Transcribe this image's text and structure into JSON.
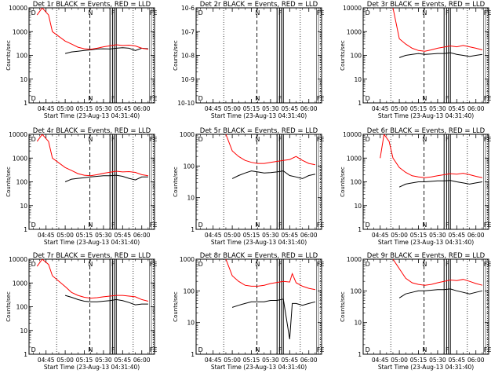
{
  "chart_data": [
    {
      "type": "line",
      "title": "Det 1r BLACK = Events, RED = LLD",
      "xlabel": "Start Time (23-Aug-13 04:31:40)",
      "ylabel": "Counts/sec",
      "x_ticks": [
        "04:45",
        "05:00",
        "05:15",
        "05:30",
        "05:45",
        "06:00"
      ],
      "y_ticks": [
        "10000",
        "1000",
        "100",
        "10",
        "1"
      ],
      "y_log": true,
      "ylim": [
        1,
        10000
      ],
      "region_labels": [
        "D",
        "N",
        "F",
        "FE"
      ],
      "series": [
        {
          "name": "Events",
          "color": "#000000",
          "x": [
            "05:00",
            "05:05",
            "05:10",
            "05:15",
            "05:20",
            "05:25",
            "05:30",
            "05:35",
            "05:40",
            "05:45",
            "05:50",
            "05:55",
            "06:00",
            "06:05"
          ],
          "values": [
            120,
            140,
            150,
            160,
            170,
            185,
            190,
            185,
            200,
            210,
            200,
            160,
            200,
            190
          ]
        },
        {
          "name": "LLD",
          "color": "#ff0000",
          "x": [
            "04:38",
            "04:42",
            "04:47",
            "04:50",
            "05:00",
            "05:05",
            "05:10",
            "05:15",
            "05:20",
            "05:25",
            "05:30",
            "05:40",
            "05:45",
            "05:50",
            "05:55",
            "06:00",
            "06:05"
          ],
          "values": [
            5000,
            10000,
            5000,
            1000,
            400,
            300,
            220,
            190,
            180,
            200,
            230,
            280,
            260,
            270,
            250,
            200,
            180
          ]
        }
      ]
    },
    {
      "type": "line",
      "title": "Det 2r BLACK = Events, RED = LLD",
      "xlabel": "Start Time (23-Aug-13 04:31:40)",
      "ylabel": "Counts/sec",
      "x_ticks": [
        "04:45",
        "05:00",
        "05:15",
        "05:30",
        "05:45",
        "06:00"
      ],
      "y_ticks": [
        "10-6",
        "10-7",
        "10-8",
        "10-9",
        "10-10"
      ],
      "y_log": true,
      "ylim": [
        1e-10,
        1e-06
      ],
      "region_labels": [
        "D",
        "N",
        "F",
        "FE"
      ],
      "series": []
    },
    {
      "type": "line",
      "title": "Det 3r BLACK = Events, RED = LLD",
      "xlabel": "Start Time (23-Aug-13 04:31:40)",
      "ylabel": "Counts/sec",
      "x_ticks": [
        "04:45",
        "05:00",
        "05:15",
        "05:30",
        "05:45",
        "06:00"
      ],
      "y_ticks": [
        "10000",
        "1000",
        "100",
        "10",
        "1"
      ],
      "y_log": true,
      "ylim": [
        1,
        10000
      ],
      "region_labels": [
        "D",
        "N",
        "F",
        "FE"
      ],
      "series": [
        {
          "name": "Events",
          "color": "#000000",
          "x": [
            "05:00",
            "05:05",
            "05:10",
            "05:15",
            "05:20",
            "05:25",
            "05:30",
            "05:35",
            "05:40",
            "05:45",
            "05:50",
            "05:55",
            "06:00",
            "06:05"
          ],
          "values": [
            80,
            100,
            110,
            120,
            110,
            115,
            120,
            120,
            130,
            110,
            100,
            90,
            100,
            110
          ]
        },
        {
          "name": "LLD",
          "color": "#ff0000",
          "x": [
            "04:55",
            "05:00",
            "05:05",
            "05:10",
            "05:15",
            "05:20",
            "05:25",
            "05:30",
            "05:40",
            "05:45",
            "05:50",
            "05:55",
            "06:00",
            "06:05"
          ],
          "values": [
            10000,
            500,
            300,
            200,
            160,
            150,
            170,
            200,
            250,
            230,
            260,
            230,
            200,
            170
          ]
        }
      ]
    },
    {
      "type": "line",
      "title": "Det 4r BLACK = Events, RED = LLD",
      "xlabel": "Start Time (23-Aug-13 04:31:40)",
      "ylabel": "Counts/sec",
      "x_ticks": [
        "04:45",
        "05:00",
        "05:15",
        "05:30",
        "05:45",
        "06:00"
      ],
      "y_ticks": [
        "10000",
        "1000",
        "100",
        "10",
        "1"
      ],
      "y_log": true,
      "ylim": [
        1,
        10000
      ],
      "region_labels": [
        "D",
        "N",
        "F",
        "FE"
      ],
      "series": [
        {
          "name": "Events",
          "color": "#000000",
          "x": [
            "05:00",
            "05:05",
            "05:10",
            "05:15",
            "05:20",
            "05:25",
            "05:30",
            "05:35",
            "05:40",
            "05:45",
            "05:50",
            "05:55",
            "06:00",
            "06:05"
          ],
          "values": [
            100,
            130,
            140,
            150,
            160,
            170,
            180,
            180,
            190,
            170,
            140,
            120,
            160,
            160
          ]
        },
        {
          "name": "LLD",
          "color": "#ff0000",
          "x": [
            "04:38",
            "04:42",
            "04:47",
            "04:50",
            "05:00",
            "05:05",
            "05:10",
            "05:15",
            "05:20",
            "05:25",
            "05:30",
            "05:40",
            "05:45",
            "05:50",
            "05:55",
            "06:00",
            "06:05"
          ],
          "values": [
            5000,
            10000,
            5000,
            1000,
            400,
            300,
            220,
            190,
            180,
            200,
            230,
            280,
            260,
            270,
            250,
            200,
            180
          ]
        }
      ]
    },
    {
      "type": "line",
      "title": "Det 5r BLACK = Events, RED = LLD",
      "xlabel": "Start Time (23-Aug-13 04:31:40)",
      "ylabel": "Counts/sec",
      "x_ticks": [
        "04:45",
        "05:00",
        "05:15",
        "05:30",
        "05:45",
        "06:00"
      ],
      "y_ticks": [
        "1000",
        "100",
        "10",
        "1"
      ],
      "y_log": true,
      "ylim": [
        1,
        1000
      ],
      "region_labels": [
        "D",
        "N",
        "F",
        "FE"
      ],
      "series": [
        {
          "name": "Events",
          "color": "#000000",
          "x": [
            "05:00",
            "05:05",
            "05:10",
            "05:15",
            "05:20",
            "05:25",
            "05:30",
            "05:35",
            "05:40",
            "05:45",
            "05:50",
            "05:55",
            "06:00",
            "06:05"
          ],
          "values": [
            40,
            50,
            60,
            70,
            65,
            60,
            62,
            65,
            70,
            50,
            45,
            40,
            50,
            55
          ]
        },
        {
          "name": "LLD",
          "color": "#ff0000",
          "x": [
            "04:55",
            "05:00",
            "05:05",
            "05:10",
            "05:15",
            "05:20",
            "05:25",
            "05:30",
            "05:40",
            "05:45",
            "05:50",
            "05:55",
            "06:00",
            "06:05"
          ],
          "values": [
            1000,
            300,
            200,
            150,
            130,
            120,
            120,
            130,
            150,
            160,
            200,
            150,
            120,
            110
          ]
        }
      ]
    },
    {
      "type": "line",
      "title": "Det 6r BLACK = Events, RED = LLD",
      "xlabel": "Start Time (23-Aug-13 04:31:40)",
      "ylabel": "Counts/sec",
      "x_ticks": [
        "04:45",
        "05:00",
        "05:15",
        "05:30",
        "05:45",
        "06:00"
      ],
      "y_ticks": [
        "10000",
        "1000",
        "100",
        "10",
        "1"
      ],
      "y_log": true,
      "ylim": [
        1,
        10000
      ],
      "region_labels": [
        "D",
        "N",
        "F",
        "FE"
      ],
      "series": [
        {
          "name": "Events",
          "color": "#000000",
          "x": [
            "05:00",
            "05:05",
            "05:10",
            "05:15",
            "05:20",
            "05:25",
            "05:30",
            "05:35",
            "05:40",
            "05:45",
            "05:50",
            "05:55",
            "06:00",
            "06:05"
          ],
          "values": [
            60,
            80,
            90,
            100,
            100,
            105,
            110,
            110,
            115,
            100,
            90,
            80,
            90,
            100
          ]
        },
        {
          "name": "LLD",
          "color": "#ff0000",
          "x": [
            "04:45",
            "04:48",
            "04:52",
            "04:55",
            "05:00",
            "05:05",
            "05:10",
            "05:15",
            "05:20",
            "05:25",
            "05:30",
            "05:40",
            "05:45",
            "05:50",
            "05:55",
            "06:00",
            "06:05"
          ],
          "values": [
            1000,
            10000,
            5000,
            1000,
            400,
            250,
            180,
            160,
            150,
            160,
            180,
            220,
            210,
            230,
            200,
            170,
            150
          ]
        }
      ]
    },
    {
      "type": "line",
      "title": "Det 7r BLACK = Events, RED = LLD",
      "xlabel": "Start Time (23-Aug-13 04:31:40)",
      "ylabel": "Counts/sec",
      "x_ticks": [
        "04:45",
        "05:00",
        "05:15",
        "05:30",
        "05:45",
        "06:00"
      ],
      "y_ticks": [
        "10000",
        "1000",
        "100",
        "10",
        "1"
      ],
      "y_log": true,
      "ylim": [
        1,
        10000
      ],
      "region_labels": [
        "D",
        "N",
        "F",
        "FE"
      ],
      "series": [
        {
          "name": "Events",
          "color": "#000000",
          "x": [
            "05:00",
            "05:05",
            "05:10",
            "05:15",
            "05:20",
            "05:25",
            "05:30",
            "05:35",
            "05:40",
            "05:45",
            "05:50",
            "05:55",
            "06:00",
            "06:05"
          ],
          "values": [
            300,
            250,
            200,
            170,
            160,
            160,
            170,
            180,
            200,
            180,
            150,
            120,
            130,
            130
          ]
        },
        {
          "name": "LLD",
          "color": "#ff0000",
          "x": [
            "04:38",
            "04:42",
            "04:47",
            "04:50",
            "05:00",
            "05:05",
            "05:10",
            "05:15",
            "05:20",
            "05:25",
            "05:30",
            "05:40",
            "05:45",
            "05:50",
            "05:55",
            "06:00",
            "06:05"
          ],
          "values": [
            5000,
            10000,
            6000,
            2000,
            700,
            400,
            300,
            250,
            230,
            240,
            260,
            300,
            300,
            280,
            260,
            200,
            170
          ]
        }
      ]
    },
    {
      "type": "line",
      "title": "Det 8r BLACK = Events, RED = LLD",
      "xlabel": "Start Time (23-Aug-13 04:31:40)",
      "ylabel": "Counts/sec",
      "x_ticks": [
        "04:45",
        "05:00",
        "05:15",
        "05:30",
        "05:45",
        "06:00"
      ],
      "y_ticks": [
        "1000",
        "100",
        "10",
        "1"
      ],
      "y_log": true,
      "ylim": [
        1,
        1000
      ],
      "region_labels": [
        "D",
        "N",
        "F",
        "FE"
      ],
      "series": [
        {
          "name": "Events",
          "color": "#000000",
          "x": [
            "05:00",
            "05:05",
            "05:10",
            "05:15",
            "05:20",
            "05:25",
            "05:30",
            "05:35",
            "05:40",
            "05:45",
            "05:47",
            "05:50",
            "05:55",
            "06:00",
            "06:05"
          ],
          "values": [
            30,
            35,
            40,
            45,
            45,
            45,
            50,
            50,
            55,
            3,
            40,
            40,
            35,
            40,
            45
          ]
        },
        {
          "name": "LLD",
          "color": "#ff0000",
          "x": [
            "04:55",
            "05:00",
            "05:05",
            "05:10",
            "05:15",
            "05:20",
            "05:25",
            "05:30",
            "05:40",
            "05:45",
            "05:47",
            "05:50",
            "05:55",
            "06:00",
            "06:05"
          ],
          "values": [
            1000,
            300,
            200,
            150,
            140,
            140,
            150,
            170,
            200,
            190,
            350,
            180,
            140,
            120,
            110
          ]
        }
      ]
    },
    {
      "type": "line",
      "title": "Det 9r BLACK = Events, RED = LLD",
      "xlabel": "Start Time (23-Aug-13 04:31:40)",
      "ylabel": "Counts/sec",
      "x_ticks": [
        "04:45",
        "05:00",
        "05:15",
        "05:30",
        "05:45",
        "06:00"
      ],
      "y_ticks": [
        "1000",
        "100",
        "10",
        "1"
      ],
      "y_log": true,
      "ylim": [
        1,
        1000
      ],
      "region_labels": [
        "D",
        "N",
        "F",
        "FE"
      ],
      "series": [
        {
          "name": "Events",
          "color": "#000000",
          "x": [
            "05:00",
            "05:05",
            "05:10",
            "05:15",
            "05:20",
            "05:25",
            "05:30",
            "05:35",
            "05:40",
            "05:45",
            "05:50",
            "05:55",
            "06:00",
            "06:05"
          ],
          "values": [
            60,
            80,
            90,
            100,
            100,
            105,
            110,
            110,
            115,
            100,
            90,
            80,
            90,
            100
          ]
        },
        {
          "name": "LLD",
          "color": "#ff0000",
          "x": [
            "04:55",
            "05:00",
            "05:05",
            "05:10",
            "05:15",
            "05:20",
            "05:25",
            "05:30",
            "05:40",
            "05:45",
            "05:50",
            "05:55",
            "06:00",
            "06:05"
          ],
          "values": [
            1000,
            500,
            250,
            180,
            160,
            150,
            160,
            180,
            220,
            210,
            230,
            200,
            170,
            150
          ]
        }
      ]
    }
  ]
}
